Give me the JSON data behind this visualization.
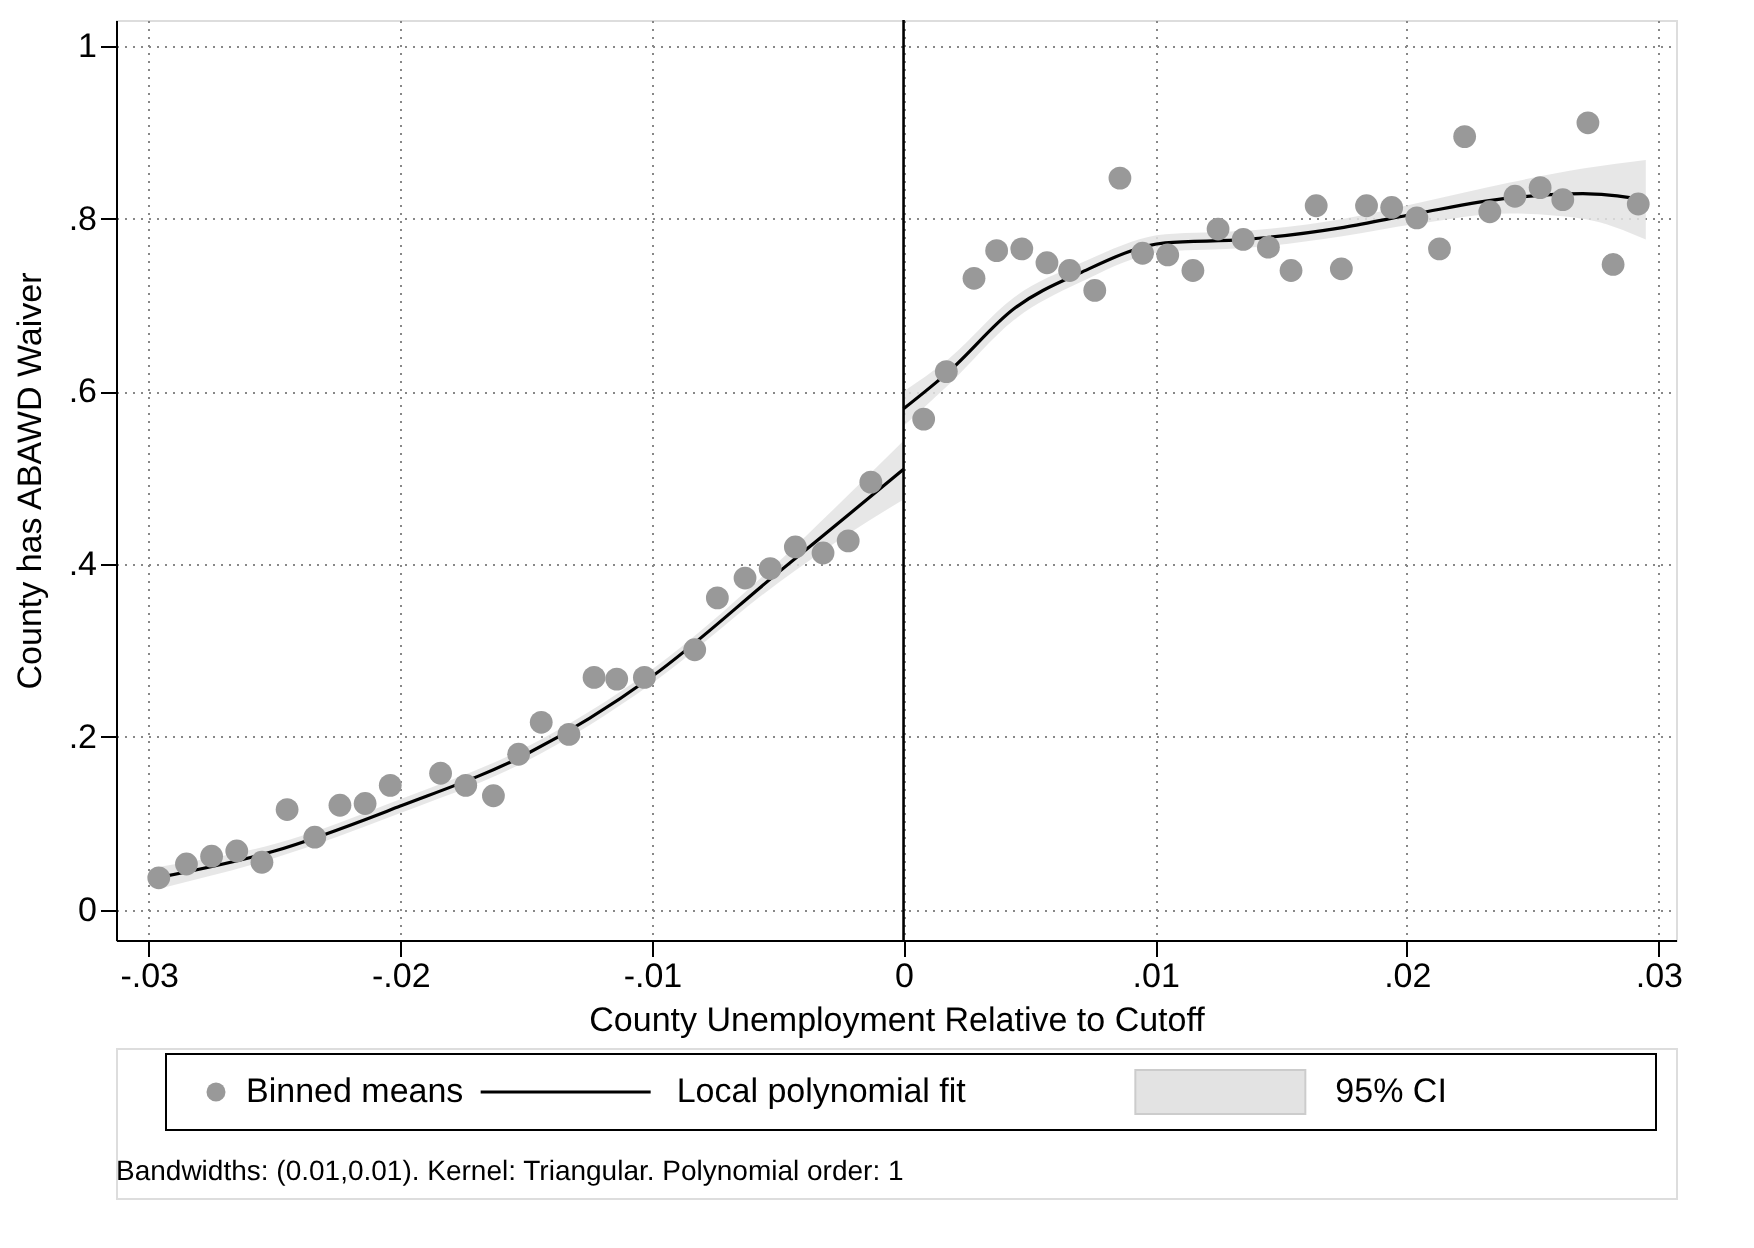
{
  "chart_data": {
    "type": "scatter",
    "xlabel": "County Unemployment Relative to Cutoff",
    "ylabel": "County has ABAWD Waiver",
    "xlim": [
      -0.0313,
      0.0307
    ],
    "ylim": [
      -0.035,
      1.03
    ],
    "xticks": [
      {
        "value": -0.03,
        "label": "-.03"
      },
      {
        "value": -0.02,
        "label": "-.02"
      },
      {
        "value": -0.01,
        "label": "-.01"
      },
      0,
      {
        "value": 0.01,
        "label": ".01"
      },
      {
        "value": 0.02,
        "label": ".02"
      },
      {
        "value": 0.03,
        "label": ".03"
      }
    ],
    "yticks": [
      0,
      {
        "value": 0.2,
        "label": ".2"
      },
      {
        "value": 0.4,
        "label": ".4"
      },
      {
        "value": 0.6,
        "label": ".6"
      },
      {
        "value": 0.8,
        "label": ".8"
      },
      1
    ],
    "grid": true,
    "legend": "bottom",
    "series": [
      {
        "name": "Binned means",
        "type": "scatter",
        "marker": "circle",
        "color": "#999999",
        "x": [
          -0.0296,
          -0.0285,
          -0.0275,
          -0.0265,
          -0.0255,
          -0.0245,
          -0.0234,
          -0.0224,
          -0.0214,
          -0.0204,
          -0.0184,
          -0.0174,
          -0.0163,
          -0.0153,
          -0.0144,
          -0.0133,
          -0.0123,
          -0.0114,
          -0.0103,
          -0.0083,
          -0.0074,
          -0.0063,
          -0.0053,
          -0.0043,
          -0.0032,
          -0.0022,
          -0.0013,
          0.0008,
          0.0017,
          0.0028,
          0.0037,
          0.0047,
          0.0057,
          0.0066,
          0.0076,
          0.0086,
          0.0095,
          0.0105,
          0.0115,
          0.0125,
          0.0135,
          0.0145,
          0.0154,
          0.0164,
          0.0174,
          0.0184,
          0.0194,
          0.0204,
          0.0213,
          0.0223,
          0.0233,
          0.0243,
          0.0253,
          0.0262,
          0.0272,
          0.0282,
          0.0292
        ],
        "values": [
          0.037,
          0.053,
          0.062,
          0.068,
          0.055,
          0.116,
          0.084,
          0.121,
          0.123,
          0.144,
          0.158,
          0.144,
          0.132,
          0.18,
          0.217,
          0.203,
          0.269,
          0.267,
          0.269,
          0.301,
          0.361,
          0.384,
          0.395,
          0.42,
          0.413,
          0.427,
          0.495,
          0.568,
          0.623,
          0.731,
          0.763,
          0.765,
          0.749,
          0.74,
          0.717,
          0.847,
          0.76,
          0.758,
          0.74,
          0.788,
          0.776,
          0.767,
          0.74,
          0.815,
          0.742,
          0.815,
          0.813,
          0.801,
          0.765,
          0.895,
          0.808,
          0.826,
          0.836,
          0.822,
          0.911,
          0.747,
          0.817
        ]
      },
      {
        "name": "Local polynomial fit",
        "type": "line",
        "color": "#000000",
        "x": [
          -0.0295,
          -0.025,
          -0.02,
          -0.015,
          -0.01,
          -0.005,
          -0.0022,
          0
        ],
        "values": [
          0.038,
          0.068,
          0.12,
          0.18,
          0.27,
          0.39,
          0.457,
          0.51
        ],
        "lower": [
          0.025,
          0.06,
          0.112,
          0.172,
          0.262,
          0.378,
          0.435,
          0.475
        ],
        "upper": [
          0.05,
          0.076,
          0.128,
          0.188,
          0.278,
          0.402,
          0.48,
          0.543
        ]
      },
      {
        "type": "line",
        "color": "#000000",
        "x": [
          0,
          0.0018,
          0.0044,
          0.007,
          0.0104,
          0.0136,
          0.0175,
          0.0204,
          0.0241,
          0.027,
          0.0295
        ],
        "values": [
          0.58,
          0.623,
          0.696,
          0.737,
          0.772,
          0.776,
          0.79,
          0.806,
          0.824,
          0.829,
          0.822
        ],
        "lower": [
          0.56,
          0.608,
          0.683,
          0.726,
          0.762,
          0.766,
          0.78,
          0.794,
          0.806,
          0.8,
          0.776
        ],
        "upper": [
          0.6,
          0.638,
          0.709,
          0.748,
          0.782,
          0.786,
          0.8,
          0.818,
          0.842,
          0.858,
          0.868
        ]
      },
      {
        "name": "95% CI",
        "type": "area",
        "color": "#e3e3e3"
      }
    ],
    "ref_lines": [
      {
        "axis": "x",
        "value": 0,
        "color": "#000000"
      }
    ],
    "annotations": [
      "Bandwidths: (0.01,0.01). Kernel: Triangular. Polynomial order: 1"
    ]
  }
}
